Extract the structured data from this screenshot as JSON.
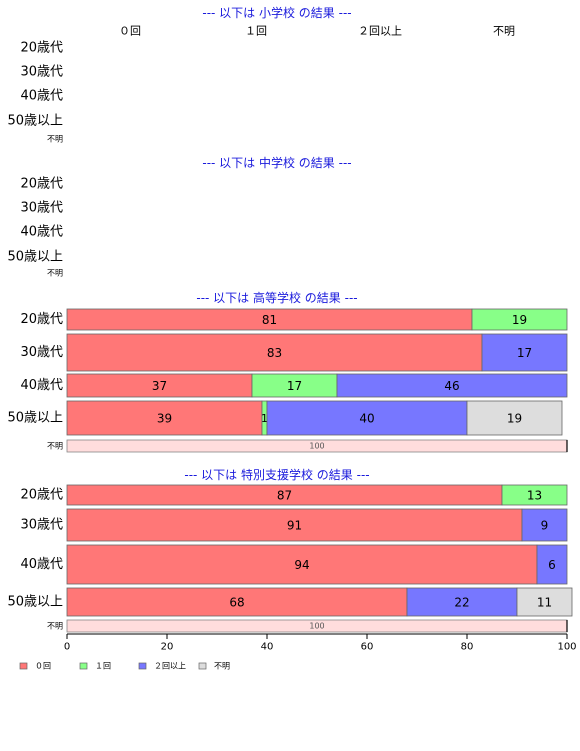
{
  "colors": {
    "c0": "#ff7777",
    "c1": "#88ff88",
    "c2": "#7777ff",
    "c3": "#dddddd",
    "unknown_fill": "#ffdddd",
    "panel_title": "#1a1adc",
    "axis": "#000000"
  },
  "header_labels": [
    "０回",
    "１回",
    "２回以上",
    "不明"
  ],
  "legend": [
    {
      "label": "０回",
      "color_key": "c0"
    },
    {
      "label": "１回",
      "color_key": "c1"
    },
    {
      "label": "２回以上",
      "color_key": "c2"
    },
    {
      "label": "不明",
      "color_key": "c3"
    }
  ],
  "chart_data": {
    "type": "bar",
    "orientation": "horizontal",
    "stacked": true,
    "xlim": [
      0,
      100
    ],
    "xticks": [
      "0",
      "20",
      "40",
      "60",
      "80",
      "100"
    ],
    "series_names": [
      "０回",
      "１回",
      "２回以上",
      "不明"
    ],
    "panels": [
      {
        "title": "--- 以下は 小学校 の結果 ---",
        "rows": [
          {
            "label": "20歳代",
            "values": [],
            "small": false
          },
          {
            "label": "30歳代",
            "values": [],
            "small": false
          },
          {
            "label": "40歳代",
            "values": [],
            "small": false
          },
          {
            "label": "50歳以上",
            "values": [],
            "small": false
          },
          {
            "label": "不明",
            "values": [],
            "small": true
          }
        ]
      },
      {
        "title": "--- 以下は 中学校 の結果 ---",
        "rows": [
          {
            "label": "20歳代",
            "values": [],
            "small": false
          },
          {
            "label": "30歳代",
            "values": [],
            "small": false
          },
          {
            "label": "40歳代",
            "values": [],
            "small": false
          },
          {
            "label": "50歳以上",
            "values": [],
            "small": false
          },
          {
            "label": "不明",
            "values": [],
            "small": true
          }
        ]
      },
      {
        "title": "--- 以下は 高等学校 の結果 ---",
        "rows": [
          {
            "label": "20歳代",
            "values": [
              81,
              19,
              0,
              0
            ],
            "small": false
          },
          {
            "label": "30歳代",
            "values": [
              83,
              0,
              17,
              0
            ],
            "small": false
          },
          {
            "label": "40歳代",
            "values": [
              37,
              17,
              46,
              0
            ],
            "small": false
          },
          {
            "label": "50歳以上",
            "values": [
              39,
              1,
              40,
              19
            ],
            "small": false
          },
          {
            "label": "不明",
            "values": [
              0,
              0,
              0,
              100
            ],
            "small": true
          }
        ]
      },
      {
        "title": "--- 以下は 特別支援学校 の結果 ---",
        "rows": [
          {
            "label": "20歳代",
            "values": [
              87,
              13,
              0,
              0
            ],
            "small": false
          },
          {
            "label": "30歳代",
            "values": [
              91,
              0,
              9,
              0
            ],
            "small": false
          },
          {
            "label": "40歳代",
            "values": [
              94,
              0,
              6,
              0
            ],
            "small": false
          },
          {
            "label": "50歳以上",
            "values": [
              68,
              0,
              22,
              11
            ],
            "small": false
          },
          {
            "label": "不明",
            "values": [
              0,
              0,
              0,
              100
            ],
            "small": true
          }
        ]
      }
    ]
  }
}
